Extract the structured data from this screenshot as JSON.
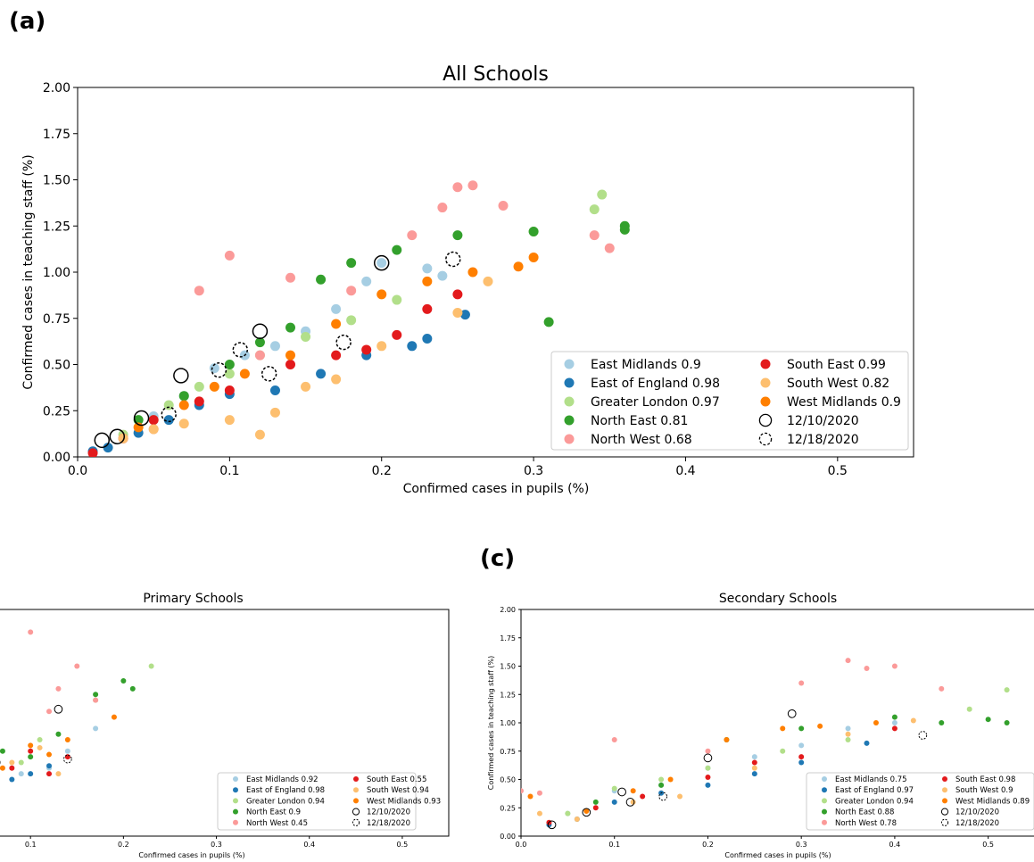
{
  "labels": {
    "panel_a": "(a)",
    "panel_c": "(c)"
  },
  "legend_entries": [
    {
      "key": "em",
      "label": "East Midlands",
      "color": "#a6cee3"
    },
    {
      "key": "ee",
      "label": "East of England",
      "color": "#1f78b4"
    },
    {
      "key": "gl",
      "label": "Greater London",
      "color": "#b2df8a"
    },
    {
      "key": "ne",
      "label": "North East",
      "color": "#33a02c"
    },
    {
      "key": "nw",
      "label": "North West",
      "color": "#fb9a99"
    },
    {
      "key": "se",
      "label": "South East",
      "color": "#e31a1c"
    },
    {
      "key": "sw",
      "label": "South West",
      "color": "#fdbf6f"
    },
    {
      "key": "wm",
      "label": "West Midlands",
      "color": "#ff7f00"
    }
  ],
  "date_markers": [
    "12/10/2020",
    "12/18/2020"
  ],
  "chart_data": [
    {
      "id": "all",
      "type": "scatter",
      "title": "All Schools",
      "xlabel": "Confirmed cases in pupils (%)",
      "ylabel": "Confirmed cases in teaching staff (%)",
      "xlim": [
        0,
        0.55
      ],
      "ylim": [
        0,
        2.0
      ],
      "xticks": [
        "0.0",
        "0.1",
        "0.2",
        "0.3",
        "0.4",
        "0.5"
      ],
      "yticks": [
        "0.00",
        "0.25",
        "0.50",
        "0.75",
        "1.00",
        "1.25",
        "1.50",
        "1.75",
        "2.00"
      ],
      "legend_location": "lower-right",
      "correlations": {
        "em": "0.9",
        "ee": "0.98",
        "gl": "0.97",
        "ne": "0.81",
        "nw": "0.68",
        "se": "0.99",
        "sw": "0.82",
        "wm": "0.9"
      },
      "series": [
        {
          "key": "em",
          "points": [
            [
              0.05,
              0.22
            ],
            [
              0.07,
              0.33
            ],
            [
              0.09,
              0.48
            ],
            [
              0.11,
              0.55
            ],
            [
              0.13,
              0.6
            ],
            [
              0.15,
              0.68
            ],
            [
              0.17,
              0.8
            ],
            [
              0.19,
              0.95
            ],
            [
              0.2,
              1.05
            ],
            [
              0.23,
              1.02
            ],
            [
              0.24,
              0.98
            ]
          ]
        },
        {
          "key": "ee",
          "points": [
            [
              0.01,
              0.03
            ],
            [
              0.02,
              0.05
            ],
            [
              0.04,
              0.13
            ],
            [
              0.06,
              0.2
            ],
            [
              0.08,
              0.28
            ],
            [
              0.1,
              0.34
            ],
            [
              0.13,
              0.36
            ],
            [
              0.16,
              0.45
            ],
            [
              0.19,
              0.55
            ],
            [
              0.22,
              0.6
            ],
            [
              0.23,
              0.64
            ],
            [
              0.255,
              0.77
            ]
          ]
        },
        {
          "key": "gl",
          "points": [
            [
              0.03,
              0.12
            ],
            [
              0.05,
              0.2
            ],
            [
              0.06,
              0.28
            ],
            [
              0.08,
              0.38
            ],
            [
              0.1,
              0.45
            ],
            [
              0.12,
              0.55
            ],
            [
              0.15,
              0.65
            ],
            [
              0.18,
              0.74
            ],
            [
              0.21,
              0.85
            ],
            [
              0.3,
              1.22
            ],
            [
              0.34,
              1.34
            ],
            [
              0.345,
              1.42
            ]
          ]
        },
        {
          "key": "ne",
          "points": [
            [
              0.04,
              0.2
            ],
            [
              0.07,
              0.33
            ],
            [
              0.1,
              0.5
            ],
            [
              0.12,
              0.62
            ],
            [
              0.14,
              0.7
            ],
            [
              0.16,
              0.96
            ],
            [
              0.18,
              1.05
            ],
            [
              0.21,
              1.12
            ],
            [
              0.25,
              1.2
            ],
            [
              0.3,
              1.22
            ],
            [
              0.31,
              0.73
            ],
            [
              0.36,
              1.25
            ],
            [
              0.36,
              1.23
            ]
          ]
        },
        {
          "key": "nw",
          "points": [
            [
              0.05,
              0.15
            ],
            [
              0.08,
              0.9
            ],
            [
              0.1,
              1.09
            ],
            [
              0.12,
              0.55
            ],
            [
              0.14,
              0.97
            ],
            [
              0.18,
              0.9
            ],
            [
              0.22,
              1.2
            ],
            [
              0.24,
              1.35
            ],
            [
              0.25,
              1.46
            ],
            [
              0.26,
              1.47
            ],
            [
              0.28,
              1.36
            ],
            [
              0.34,
              1.2
            ],
            [
              0.35,
              1.13
            ]
          ]
        },
        {
          "key": "se",
          "points": [
            [
              0.01,
              0.02
            ],
            [
              0.03,
              0.1
            ],
            [
              0.05,
              0.2
            ],
            [
              0.08,
              0.3
            ],
            [
              0.1,
              0.36
            ],
            [
              0.14,
              0.5
            ],
            [
              0.17,
              0.55
            ],
            [
              0.19,
              0.58
            ],
            [
              0.21,
              0.66
            ],
            [
              0.23,
              0.8
            ],
            [
              0.25,
              0.88
            ]
          ]
        },
        {
          "key": "sw",
          "points": [
            [
              0.03,
              0.1
            ],
            [
              0.05,
              0.15
            ],
            [
              0.07,
              0.18
            ],
            [
              0.1,
              0.2
            ],
            [
              0.12,
              0.12
            ],
            [
              0.13,
              0.24
            ],
            [
              0.15,
              0.38
            ],
            [
              0.17,
              0.42
            ],
            [
              0.2,
              0.6
            ],
            [
              0.25,
              0.78
            ],
            [
              0.27,
              0.95
            ]
          ]
        },
        {
          "key": "wm",
          "points": [
            [
              0.04,
              0.16
            ],
            [
              0.07,
              0.28
            ],
            [
              0.09,
              0.38
            ],
            [
              0.11,
              0.45
            ],
            [
              0.14,
              0.55
            ],
            [
              0.17,
              0.72
            ],
            [
              0.2,
              0.88
            ],
            [
              0.23,
              0.95
            ],
            [
              0.26,
              1.0
            ],
            [
              0.29,
              1.03
            ],
            [
              0.3,
              1.08
            ]
          ]
        }
      ],
      "markers_solid": [
        [
          0.016,
          0.09
        ],
        [
          0.026,
          0.11
        ],
        [
          0.042,
          0.21
        ],
        [
          0.068,
          0.44
        ],
        [
          0.12,
          0.68
        ],
        [
          0.2,
          1.05
        ]
      ],
      "markers_dashed": [
        [
          0.06,
          0.23
        ],
        [
          0.093,
          0.47
        ],
        [
          0.107,
          0.58
        ],
        [
          0.126,
          0.45
        ],
        [
          0.175,
          0.62
        ],
        [
          0.247,
          1.07
        ]
      ]
    },
    {
      "id": "primary",
      "type": "scatter",
      "title": "Primary Schools",
      "xlabel": "Confirmed cases in pupils (%)",
      "ylabel": "",
      "xlim": [
        0,
        0.55
      ],
      "ylim": [
        0,
        2.0
      ],
      "xticks": [
        "0.1",
        "0.2",
        "0.3",
        "0.4",
        "0.5"
      ],
      "yticks": [],
      "legend_location": "lower-right",
      "correlations": {
        "em": "0.92",
        "ee": "0.98",
        "gl": "0.94",
        "ne": "0.9",
        "nw": "0.45",
        "se": "0.55",
        "sw": "0.94",
        "wm": "0.93"
      },
      "series": [
        {
          "key": "em",
          "points": [
            [
              0.06,
              0.35
            ],
            [
              0.09,
              0.55
            ],
            [
              0.12,
              0.6
            ],
            [
              0.14,
              0.75
            ],
            [
              0.17,
              0.95
            ]
          ]
        },
        {
          "key": "ee",
          "points": [
            [
              0.06,
              0.45
            ],
            [
              0.08,
              0.5
            ],
            [
              0.1,
              0.55
            ],
            [
              0.12,
              0.62
            ]
          ]
        },
        {
          "key": "gl",
          "points": [
            [
              0.06,
              0.7
            ],
            [
              0.09,
              0.65
            ],
            [
              0.11,
              0.85
            ],
            [
              0.17,
              1.2
            ],
            [
              0.23,
              1.5
            ]
          ]
        },
        {
          "key": "ne",
          "points": [
            [
              0.07,
              0.75
            ],
            [
              0.1,
              0.7
            ],
            [
              0.13,
              0.9
            ],
            [
              0.17,
              1.25
            ],
            [
              0.2,
              1.37
            ],
            [
              0.21,
              1.3
            ]
          ]
        },
        {
          "key": "nw",
          "points": [
            [
              0.06,
              1.45
            ],
            [
              0.1,
              1.8
            ],
            [
              0.12,
              1.1
            ],
            [
              0.13,
              1.3
            ],
            [
              0.15,
              1.5
            ],
            [
              0.17,
              1.2
            ]
          ]
        },
        {
          "key": "se",
          "points": [
            [
              0.08,
              0.6
            ],
            [
              0.1,
              0.75
            ],
            [
              0.12,
              0.55
            ],
            [
              0.14,
              0.7
            ]
          ]
        },
        {
          "key": "sw",
          "points": [
            [
              0.06,
              0.5
            ],
            [
              0.08,
              0.65
            ],
            [
              0.11,
              0.78
            ],
            [
              0.13,
              0.55
            ]
          ]
        },
        {
          "key": "wm",
          "points": [
            [
              0.07,
              0.6
            ],
            [
              0.1,
              0.8
            ],
            [
              0.12,
              0.72
            ],
            [
              0.14,
              0.85
            ],
            [
              0.19,
              1.05
            ]
          ]
        }
      ],
      "markers_solid": [
        [
          0.063,
          0.65
        ],
        [
          0.13,
          1.12
        ]
      ],
      "markers_dashed": [
        [
          0.14,
          0.68
        ]
      ]
    },
    {
      "id": "secondary",
      "type": "scatter",
      "title": "Secondary Schools",
      "xlabel": "Confirmed cases in pupils (%)",
      "ylabel": "Confirmed cases in teaching staff (%)",
      "xlim": [
        0,
        0.55
      ],
      "ylim": [
        0,
        2.0
      ],
      "xticks": [
        "0.0",
        "0.1",
        "0.2",
        "0.3",
        "0.4",
        "0.5"
      ],
      "yticks": [
        "0.00",
        "0.25",
        "0.50",
        "0.75",
        "1.00",
        "1.25",
        "1.50",
        "1.75",
        "2.00"
      ],
      "legend_location": "lower-right",
      "correlations": {
        "em": "0.75",
        "ee": "0.97",
        "gl": "0.94",
        "ne": "0.88",
        "nw": "0.78",
        "se": "0.98",
        "sw": "0.9",
        "wm": "0.89"
      },
      "series": [
        {
          "key": "em",
          "points": [
            [
              0.05,
              0.2
            ],
            [
              0.1,
              0.4
            ],
            [
              0.15,
              0.45
            ],
            [
              0.2,
              0.6
            ],
            [
              0.25,
              0.7
            ],
            [
              0.3,
              0.8
            ],
            [
              0.35,
              0.95
            ],
            [
              0.4,
              1.0
            ]
          ]
        },
        {
          "key": "ee",
          "points": [
            [
              0.03,
              0.1
            ],
            [
              0.06,
              0.15
            ],
            [
              0.1,
              0.3
            ],
            [
              0.15,
              0.38
            ],
            [
              0.2,
              0.45
            ],
            [
              0.25,
              0.55
            ],
            [
              0.3,
              0.65
            ],
            [
              0.37,
              0.82
            ]
          ]
        },
        {
          "key": "gl",
          "points": [
            [
              0.05,
              0.2
            ],
            [
              0.1,
              0.42
            ],
            [
              0.15,
              0.5
            ],
            [
              0.2,
              0.6
            ],
            [
              0.28,
              0.75
            ],
            [
              0.35,
              0.85
            ],
            [
              0.48,
              1.12
            ],
            [
              0.52,
              1.29
            ]
          ]
        },
        {
          "key": "ne",
          "points": [
            [
              0.08,
              0.3
            ],
            [
              0.15,
              0.45
            ],
            [
              0.22,
              0.85
            ],
            [
              0.3,
              0.95
            ],
            [
              0.4,
              1.05
            ],
            [
              0.45,
              1.0
            ],
            [
              0.5,
              1.03
            ],
            [
              0.52,
              1.0
            ]
          ]
        },
        {
          "key": "nw",
          "points": [
            [
              0.0,
              0.4
            ],
            [
              0.02,
              0.38
            ],
            [
              0.1,
              0.85
            ],
            [
              0.2,
              0.75
            ],
            [
              0.3,
              1.35
            ],
            [
              0.35,
              1.55
            ],
            [
              0.37,
              1.48
            ],
            [
              0.4,
              1.5
            ],
            [
              0.45,
              1.3
            ]
          ]
        },
        {
          "key": "se",
          "points": [
            [
              0.03,
              0.12
            ],
            [
              0.08,
              0.25
            ],
            [
              0.13,
              0.35
            ],
            [
              0.2,
              0.52
            ],
            [
              0.25,
              0.65
            ],
            [
              0.3,
              0.7
            ],
            [
              0.4,
              0.95
            ]
          ]
        },
        {
          "key": "sw",
          "points": [
            [
              0.02,
              0.2
            ],
            [
              0.06,
              0.15
            ],
            [
              0.12,
              0.3
            ],
            [
              0.17,
              0.35
            ],
            [
              0.25,
              0.6
            ],
            [
              0.35,
              0.9
            ],
            [
              0.42,
              1.02
            ]
          ]
        },
        {
          "key": "wm",
          "points": [
            [
              0.01,
              0.35
            ],
            [
              0.07,
              0.22
            ],
            [
              0.12,
              0.4
            ],
            [
              0.16,
              0.5
            ],
            [
              0.22,
              0.85
            ],
            [
              0.28,
              0.95
            ],
            [
              0.32,
              0.97
            ],
            [
              0.38,
              1.0
            ]
          ]
        }
      ],
      "markers_solid": [
        [
          0.033,
          0.1
        ],
        [
          0.07,
          0.21
        ],
        [
          0.108,
          0.39
        ],
        [
          0.117,
          0.3
        ],
        [
          0.2,
          0.69
        ],
        [
          0.29,
          1.08
        ]
      ],
      "markers_dashed": [
        [
          0.152,
          0.35
        ],
        [
          0.43,
          0.89
        ]
      ]
    }
  ]
}
